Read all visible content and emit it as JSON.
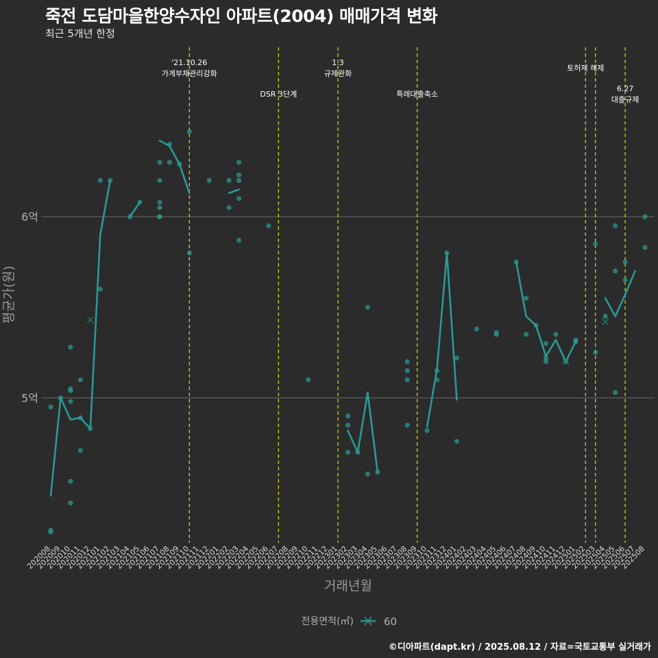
{
  "header": {
    "title": "죽전 도담마을한양수자인 아파트(2004) 매매가격 변화",
    "subtitle": "최근 5개년 한정"
  },
  "credit": "©디아파트(dapt.kr) / 2025.08.12 / 자료=국토교통부 실거래가",
  "colors": {
    "background": "#2b2b2b",
    "series": "#2a9a96",
    "event_line": "#d4d400",
    "grid": "#6a6a6a",
    "axis_text": "#b3b3b3"
  },
  "chart_data": {
    "type": "line",
    "title": "죽전 도담마을한양수자인 아파트(2004) 매매가격 변화",
    "subtitle": "최근 5개년 한정",
    "xlabel": "거래년월",
    "ylabel": "평균가(원)",
    "ylim": [
      4.2,
      6.95
    ],
    "y_ticks": [
      {
        "value": 5,
        "label": "5억"
      },
      {
        "value": 6,
        "label": "6억"
      }
    ],
    "categories": [
      "202008",
      "202009",
      "202010",
      "202011",
      "202012",
      "202101",
      "202102",
      "202103",
      "202104",
      "202105",
      "202106",
      "202107",
      "202108",
      "202109",
      "202110",
      "202111",
      "202112",
      "202201",
      "202202",
      "202203",
      "202204",
      "202205",
      "202206",
      "202207",
      "202208",
      "202209",
      "202210",
      "202211",
      "202212",
      "202301",
      "202302",
      "202303",
      "202304",
      "202305",
      "202306",
      "202307",
      "202308",
      "202309",
      "202310",
      "202311",
      "202312",
      "202401",
      "202402",
      "202403",
      "202404",
      "202405",
      "202406",
      "202407",
      "202408",
      "202409",
      "202410",
      "202411",
      "202412",
      "202501",
      "202502",
      "202503",
      "202504",
      "202505",
      "202506",
      "202507",
      "202508"
    ],
    "legend": {
      "title": "전용면적(㎡)",
      "entries": [
        "60"
      ]
    },
    "series": [
      {
        "name": "60",
        "average": [
          4.46,
          5.0,
          4.88,
          4.89,
          4.83,
          5.9,
          6.2,
          null,
          6.0,
          6.08,
          null,
          6.42,
          6.39,
          6.29,
          6.13,
          null,
          null,
          null,
          6.13,
          6.15,
          null,
          null,
          null,
          null,
          null,
          null,
          null,
          null,
          null,
          null,
          4.82,
          4.7,
          5.03,
          4.59,
          null,
          null,
          null,
          null,
          4.84,
          5.16,
          5.8,
          4.99,
          null,
          null,
          null,
          null,
          null,
          5.75,
          5.45,
          5.4,
          5.23,
          5.32,
          5.2,
          5.31,
          null,
          null,
          5.55,
          5.45,
          5.57,
          5.7,
          null
        ],
        "transactions": [
          [
            202008,
            4.95
          ],
          [
            202008,
            4.27
          ],
          [
            202008,
            4.26
          ],
          [
            202009,
            5.0
          ],
          [
            202010,
            5.28
          ],
          [
            202010,
            5.05
          ],
          [
            202010,
            5.04
          ],
          [
            202010,
            4.98
          ],
          [
            202010,
            4.54
          ],
          [
            202010,
            4.42
          ],
          [
            202011,
            5.1
          ],
          [
            202011,
            4.89
          ],
          [
            202011,
            4.71
          ],
          [
            202012,
            4.83
          ],
          [
            202101,
            5.6
          ],
          [
            202101,
            6.2
          ],
          [
            202102,
            6.2
          ],
          [
            202104,
            6.0
          ],
          [
            202105,
            6.08
          ],
          [
            202107,
            6.3
          ],
          [
            202107,
            6.2
          ],
          [
            202107,
            6.08
          ],
          [
            202107,
            6.05
          ],
          [
            202107,
            6.0
          ],
          [
            202107,
            6.0
          ],
          [
            202108,
            6.4
          ],
          [
            202108,
            6.3
          ],
          [
            202109,
            6.29
          ],
          [
            202110,
            6.47
          ],
          [
            202110,
            5.8
          ],
          [
            202112,
            6.2
          ],
          [
            202202,
            6.2
          ],
          [
            202202,
            6.05
          ],
          [
            202203,
            6.3
          ],
          [
            202203,
            6.23
          ],
          [
            202203,
            6.2
          ],
          [
            202203,
            6.1
          ],
          [
            202203,
            5.87
          ],
          [
            202206,
            5.95
          ],
          [
            202210,
            5.1
          ],
          [
            202302,
            4.9
          ],
          [
            202302,
            4.85
          ],
          [
            202302,
            4.7
          ],
          [
            202303,
            4.7
          ],
          [
            202304,
            5.5
          ],
          [
            202304,
            4.58
          ],
          [
            202305,
            4.59
          ],
          [
            202308,
            5.2
          ],
          [
            202308,
            5.15
          ],
          [
            202308,
            5.1
          ],
          [
            202308,
            4.85
          ],
          [
            202310,
            4.82
          ],
          [
            202311,
            5.15
          ],
          [
            202311,
            5.1
          ],
          [
            202312,
            5.8
          ],
          [
            202401,
            5.22
          ],
          [
            202401,
            4.76
          ],
          [
            202403,
            5.38
          ],
          [
            202405,
            5.36
          ],
          [
            202405,
            5.35
          ],
          [
            202407,
            5.75
          ],
          [
            202408,
            5.55
          ],
          [
            202408,
            5.35
          ],
          [
            202409,
            5.4
          ],
          [
            202410,
            5.3
          ],
          [
            202410,
            5.22
          ],
          [
            202410,
            5.2
          ],
          [
            202411,
            5.35
          ],
          [
            202412,
            5.2
          ],
          [
            202501,
            5.32
          ],
          [
            202501,
            5.31
          ],
          [
            202503,
            5.85
          ],
          [
            202503,
            5.25
          ],
          [
            202504,
            5.45
          ],
          [
            202505,
            5.95
          ],
          [
            202505,
            5.7
          ],
          [
            202505,
            5.03
          ],
          [
            202506,
            5.75
          ],
          [
            202506,
            5.65
          ],
          [
            202508,
            6.0
          ],
          [
            202508,
            5.83
          ]
        ],
        "x_markers": [
          [
            202012,
            5.43
          ],
          [
            202412,
            5.2
          ],
          [
            202504,
            5.42
          ]
        ]
      }
    ],
    "events": [
      {
        "at": 202110,
        "lines": [
          "'21.10.26",
          "가계부채관리강화"
        ],
        "level": 1
      },
      {
        "at": 202207,
        "lines": [
          "DSR 3단계"
        ],
        "level": 3
      },
      {
        "at": 202301,
        "lines": [
          "1.3",
          "규제완화"
        ],
        "level": 1
      },
      {
        "at": 202309,
        "lines": [
          "특례대출축소"
        ],
        "level": 3
      },
      {
        "at": 202502,
        "lines": [
          "토허제 해제"
        ],
        "level": 2
      },
      {
        "at": 202503,
        "lines": [],
        "level": 0
      },
      {
        "at": 202506,
        "lines": [
          "6.27",
          "대출규제"
        ],
        "level": 2
      }
    ]
  }
}
